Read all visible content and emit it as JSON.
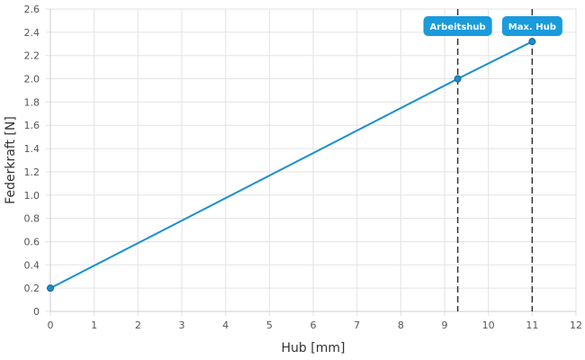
{
  "chart_data": {
    "type": "line",
    "xlabel": "Hub [mm]",
    "ylabel": "Federkraft [N]",
    "xlim": [
      0,
      12
    ],
    "ylim": [
      0,
      2.6
    ],
    "x_ticks": [
      "0",
      "1",
      "2",
      "3",
      "4",
      "5",
      "6",
      "7",
      "8",
      "9",
      "10",
      "11",
      "12"
    ],
    "y_ticks": [
      "0",
      "0.2",
      "0.4",
      "0.6",
      "0.8",
      "1.0",
      "1.2",
      "1.4",
      "1.6",
      "1.8",
      "2.0",
      "2.2",
      "2.4",
      "2.6"
    ],
    "grid": true,
    "series": [
      {
        "x": [
          0,
          9.3,
          11
        ],
        "y": [
          0.2,
          2.0,
          2.32
        ]
      }
    ],
    "markers": [
      {
        "label": "Arbeitshub",
        "x": 9.3,
        "y": 2.0
      },
      {
        "label": "Max. Hub",
        "x": 11,
        "y": 2.32
      }
    ],
    "colors": {
      "line": "#1a8fd0",
      "point": "#1a8fd0",
      "marker_line": "#333333",
      "marker_label_bg": "#1a9bdc",
      "grid": "#e3e3e3"
    }
  }
}
